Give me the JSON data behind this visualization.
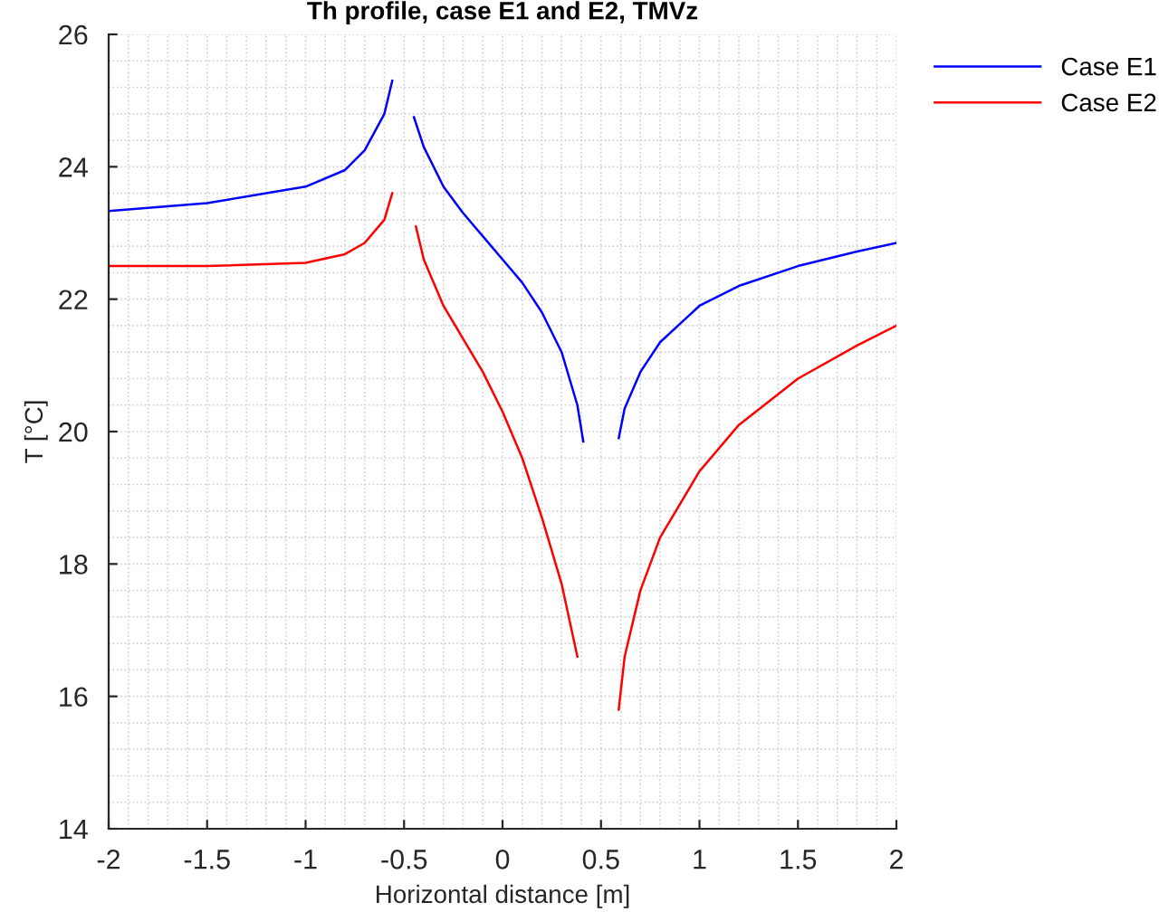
{
  "chart_data": {
    "type": "line",
    "title": "Th profile, case E1 and E2, TMVz",
    "xlabel": "Horizontal distance [m]",
    "ylabel": "T [°C]",
    "series": [
      {
        "name": "Case E1",
        "color": "#0000ff",
        "x": [
          -2,
          -1.5,
          -1,
          -0.8,
          -0.7,
          -0.6,
          -0.56,
          null,
          -0.45,
          -0.4,
          -0.3,
          -0.2,
          -0.1,
          0,
          0.1,
          0.2,
          0.3,
          0.38,
          0.41,
          null,
          0.59,
          0.62,
          0.7,
          0.8,
          1.0,
          1.2,
          1.5,
          1.8,
          2.0
        ],
        "values": [
          23.33,
          23.45,
          23.7,
          23.95,
          24.25,
          24.8,
          25.3,
          null,
          24.75,
          24.3,
          23.7,
          23.3,
          22.95,
          22.6,
          22.25,
          21.8,
          21.2,
          20.4,
          19.85,
          null,
          19.9,
          20.35,
          20.9,
          21.35,
          21.9,
          22.2,
          22.5,
          22.72,
          22.85
        ]
      },
      {
        "name": "Case E2",
        "color": "#ff0000",
        "x": [
          -2,
          -1.5,
          -1,
          -0.8,
          -0.7,
          -0.6,
          -0.56,
          null,
          -0.44,
          -0.4,
          -0.3,
          -0.2,
          -0.1,
          0,
          0.1,
          0.2,
          0.3,
          0.38,
          null,
          0.59,
          0.62,
          0.7,
          0.8,
          1.0,
          1.2,
          1.5,
          1.8,
          2.0
        ],
        "values": [
          22.5,
          22.5,
          22.55,
          22.68,
          22.85,
          23.2,
          23.6,
          null,
          23.1,
          22.6,
          21.9,
          21.4,
          20.9,
          20.3,
          19.6,
          18.7,
          17.7,
          16.6,
          null,
          15.8,
          16.6,
          17.6,
          18.4,
          19.4,
          20.1,
          20.8,
          21.3,
          21.6
        ]
      }
    ],
    "xlim": [
      -2,
      2
    ],
    "xticks": [
      -2,
      -1.5,
      -1,
      -0.5,
      0,
      0.5,
      1,
      1.5,
      2
    ],
    "ylim": [
      14,
      26
    ],
    "yticks": [
      14,
      16,
      18,
      20,
      22,
      24,
      26
    ],
    "grid": true,
    "legend": "top right",
    "line_style": "solid",
    "marker": "none"
  }
}
